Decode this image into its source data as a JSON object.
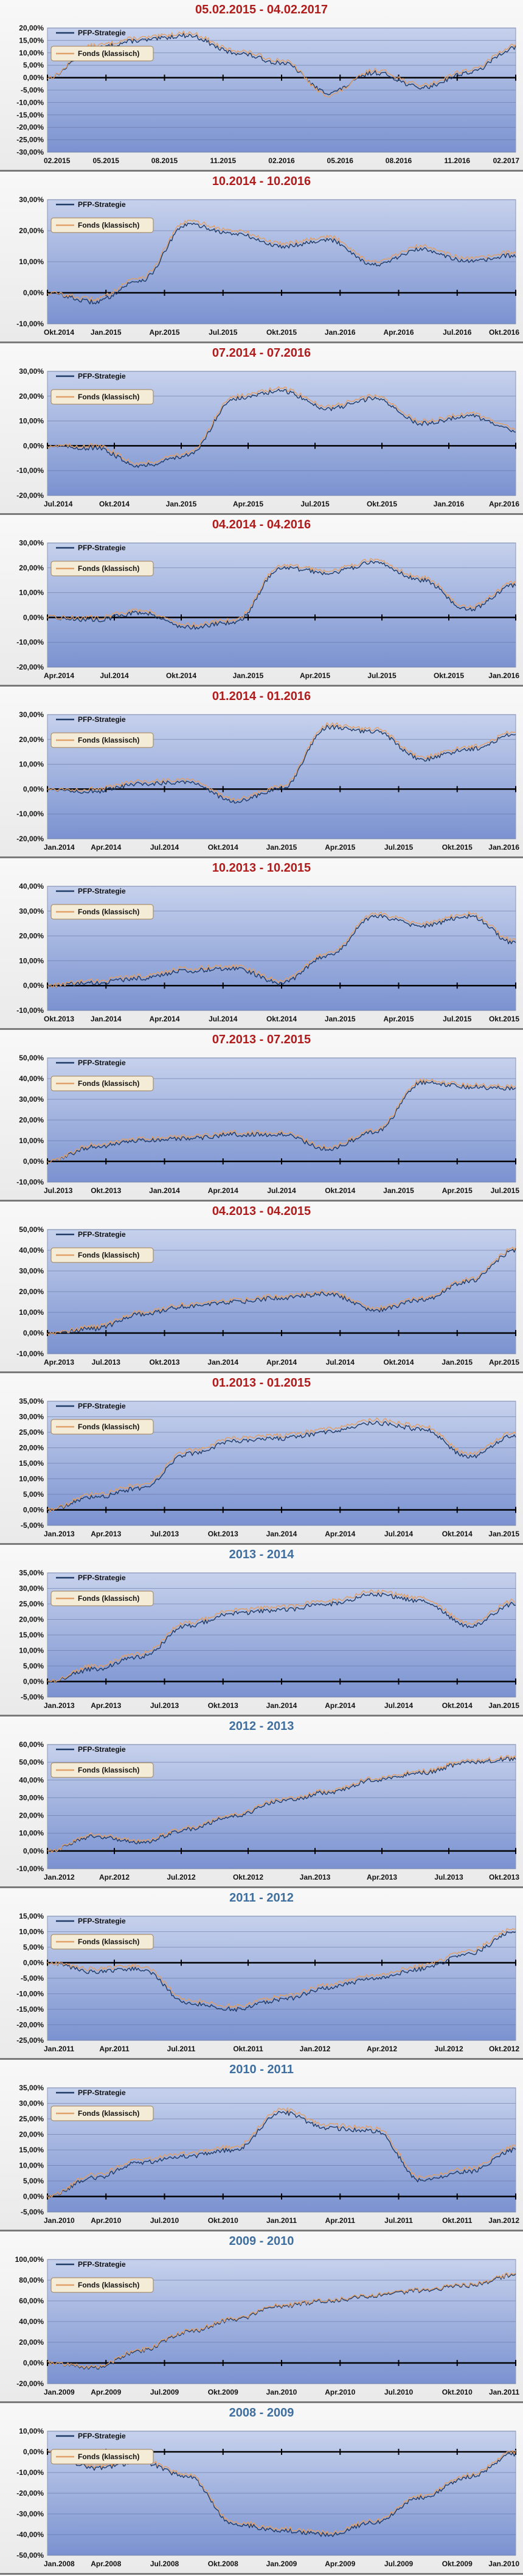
{
  "legend": {
    "series1": "PFP-Strategie",
    "series2": "Fonds (klassisch)"
  },
  "colors": {
    "strategy": "#1f3a66",
    "fund": "#e0a06a",
    "title_red": "#b01c1c",
    "title_blue": "#3f6f9f",
    "plot_top": "#c6d1ec",
    "plot_bottom": "#7a92d0",
    "grid": "#5d6f9c"
  },
  "chart_data": [
    {
      "type": "line",
      "title": "05.02.2015 - 04.02.2017",
      "title_color": "red",
      "ylim": [
        -30,
        20
      ],
      "yticks": [
        20,
        15,
        10,
        5,
        0,
        -5,
        -10,
        -15,
        -20,
        -25,
        -30
      ],
      "xticks": [
        "02.2015",
        "05.2015",
        "08.2015",
        "11.2015",
        "02.2016",
        "05.2016",
        "08.2016",
        "11.2016",
        "02.2017"
      ],
      "series": [
        {
          "name": "PFP-Strategie",
          "values": [
            0,
            12,
            15,
            17,
            10,
            6,
            -6,
            2,
            -4,
            2,
            12
          ]
        },
        {
          "name": "Fonds (klassisch)",
          "values": [
            0,
            13,
            16,
            18,
            11,
            7,
            -7,
            3,
            -3,
            3,
            13
          ]
        }
      ]
    },
    {
      "type": "line",
      "title": "10.2014 - 10.2016",
      "title_color": "red",
      "ylim": [
        -10,
        30
      ],
      "yticks": [
        30,
        20,
        10,
        0,
        -10
      ],
      "xticks": [
        "Okt.2014",
        "Jan.2015",
        "Apr.2015",
        "Jul.2015",
        "Okt.2015",
        "Jan.2016",
        "Apr.2016",
        "Jul.2016",
        "Okt.2016"
      ],
      "series": [
        {
          "name": "PFP-Strategie",
          "values": [
            0,
            -3,
            4,
            22,
            19,
            15,
            17,
            9,
            14,
            10,
            12
          ]
        },
        {
          "name": "Fonds (klassisch)",
          "values": [
            0,
            -2,
            5,
            23,
            20,
            16,
            18,
            10,
            15,
            11,
            13
          ]
        }
      ]
    },
    {
      "type": "line",
      "title": "07.2014 - 07.2016",
      "title_color": "red",
      "ylim": [
        -20,
        30
      ],
      "yticks": [
        30,
        20,
        10,
        0,
        -10,
        -20
      ],
      "xticks": [
        "Jul.2014",
        "Okt.2014",
        "Jan.2015",
        "Apr.2015",
        "Jul.2015",
        "Okt.2015",
        "Jan.2016",
        "Apr.2016"
      ],
      "series": [
        {
          "name": "PFP-Strategie",
          "values": [
            0,
            -1,
            -8,
            -4,
            19,
            22,
            15,
            19,
            9,
            12,
            6
          ]
        },
        {
          "name": "Fonds (klassisch)",
          "values": [
            0,
            0,
            -7,
            -3,
            20,
            23,
            16,
            20,
            10,
            13,
            7
          ]
        }
      ]
    },
    {
      "type": "line",
      "title": "04.2014 - 04.2016",
      "title_color": "red",
      "ylim": [
        -20,
        30
      ],
      "yticks": [
        30,
        20,
        10,
        0,
        -10,
        -20
      ],
      "xticks": [
        "Apr.2014",
        "Jul.2014",
        "Okt.2014",
        "Jan.2015",
        "Apr.2015",
        "Jul.2015",
        "Okt.2015",
        "Jan.2016"
      ],
      "series": [
        {
          "name": "PFP-Strategie",
          "values": [
            0,
            -1,
            2,
            -4,
            -2,
            20,
            18,
            22,
            15,
            3,
            13
          ]
        },
        {
          "name": "Fonds (klassisch)",
          "values": [
            0,
            0,
            3,
            -3,
            -1,
            21,
            19,
            23,
            16,
            4,
            14
          ]
        }
      ]
    },
    {
      "type": "line",
      "title": "01.2014 - 01.2016",
      "title_color": "red",
      "ylim": [
        -20,
        30
      ],
      "yticks": [
        30,
        20,
        10,
        0,
        -10,
        -20
      ],
      "xticks": [
        "Jan.2014",
        "Apr.2014",
        "Jul.2014",
        "Okt.2014",
        "Jan.2015",
        "Apr.2015",
        "Jul.2015",
        "Okt.2015",
        "Jan.2016"
      ],
      "series": [
        {
          "name": "PFP-Strategie",
          "values": [
            0,
            -1,
            2,
            3,
            -5,
            0,
            25,
            23,
            12,
            16,
            22
          ]
        },
        {
          "name": "Fonds (klassisch)",
          "values": [
            0,
            0,
            3,
            4,
            -4,
            1,
            26,
            24,
            13,
            17,
            23
          ]
        }
      ]
    },
    {
      "type": "line",
      "title": "10.2013 - 10.2015",
      "title_color": "red",
      "ylim": [
        -10,
        40
      ],
      "yticks": [
        40,
        30,
        20,
        10,
        0,
        -10
      ],
      "xticks": [
        "Okt.2013",
        "Jan.2014",
        "Apr.2014",
        "Jul.2014",
        "Okt.2014",
        "Jan.2015",
        "Apr.2015",
        "Jul.2015",
        "Okt.2015"
      ],
      "series": [
        {
          "name": "PFP-Strategie",
          "values": [
            0,
            1,
            3,
            6,
            7,
            1,
            12,
            28,
            24,
            28,
            17
          ]
        },
        {
          "name": "Fonds (klassisch)",
          "values": [
            0,
            2,
            4,
            7,
            8,
            2,
            13,
            29,
            25,
            29,
            18
          ]
        }
      ]
    },
    {
      "type": "line",
      "title": "07.2013 - 07.2015",
      "title_color": "red",
      "ylim": [
        -10,
        50
      ],
      "yticks": [
        50,
        40,
        30,
        20,
        10,
        0,
        -10
      ],
      "xticks": [
        "Jul.2013",
        "Okt.2013",
        "Jan.2014",
        "Apr.2014",
        "Jul.2014",
        "Okt.2014",
        "Jan.2015",
        "Apr.2015",
        "Jul.2015"
      ],
      "series": [
        {
          "name": "PFP-Strategie",
          "values": [
            0,
            7,
            10,
            11,
            13,
            13,
            6,
            14,
            38,
            36,
            35
          ]
        },
        {
          "name": "Fonds (klassisch)",
          "values": [
            0,
            8,
            11,
            12,
            14,
            14,
            7,
            15,
            39,
            37,
            36
          ]
        }
      ]
    },
    {
      "type": "line",
      "title": "04.2013 - 04.2015",
      "title_color": "red",
      "ylim": [
        -10,
        50
      ],
      "yticks": [
        50,
        40,
        30,
        20,
        10,
        0,
        -10
      ],
      "xticks": [
        "Apr.2013",
        "Jul.2013",
        "Okt.2013",
        "Jan.2014",
        "Apr.2014",
        "Jul.2014",
        "Okt.2014",
        "Jan.2015",
        "Apr.2015"
      ],
      "series": [
        {
          "name": "PFP-Strategie",
          "values": [
            0,
            2,
            9,
            13,
            15,
            17,
            19,
            11,
            16,
            25,
            40
          ]
        },
        {
          "name": "Fonds (klassisch)",
          "values": [
            0,
            3,
            10,
            14,
            16,
            18,
            20,
            12,
            17,
            26,
            41
          ]
        }
      ]
    },
    {
      "type": "line",
      "title": "01.2013 - 01.2015",
      "title_color": "red",
      "ylim": [
        -5,
        35
      ],
      "yticks": [
        35,
        30,
        25,
        20,
        15,
        10,
        5,
        0,
        -5
      ],
      "xticks": [
        "Jan.2013",
        "Apr.2013",
        "Jul.2013",
        "Okt.2013",
        "Jan.2014",
        "Apr.2014",
        "Jul.2014",
        "Okt.2014",
        "Jan.2015"
      ],
      "series": [
        {
          "name": "PFP-Strategie",
          "values": [
            0,
            4,
            7,
            18,
            22,
            23,
            25,
            28,
            26,
            17,
            24
          ]
        },
        {
          "name": "Fonds (klassisch)",
          "values": [
            0,
            5,
            8,
            19,
            23,
            24,
            26,
            29,
            27,
            18,
            25
          ]
        }
      ]
    },
    {
      "type": "line",
      "title": "2013 - 2014",
      "title_color": "blue",
      "ylim": [
        -5,
        35
      ],
      "yticks": [
        35,
        30,
        25,
        20,
        15,
        10,
        5,
        0,
        -5
      ],
      "xticks": [
        "Jan.2013",
        "Apr.2013",
        "Jul.2013",
        "Okt.2013",
        "Jan.2014",
        "Apr.2014",
        "Jul.2014",
        "Okt.2014",
        "Jan.2015"
      ],
      "series": [
        {
          "name": "PFP-Strategie",
          "values": [
            0,
            4,
            8,
            18,
            22,
            23,
            25,
            28,
            26,
            18,
            25
          ]
        },
        {
          "name": "Fonds (klassisch)",
          "values": [
            0,
            5,
            9,
            19,
            23,
            24,
            26,
            29,
            27,
            19,
            26
          ]
        }
      ]
    },
    {
      "type": "line",
      "title": "2012 - 2013",
      "title_color": "blue",
      "ylim": [
        -10,
        60
      ],
      "yticks": [
        60,
        50,
        40,
        30,
        20,
        10,
        0,
        -10
      ],
      "xticks": [
        "Jan.2012",
        "Apr.2012",
        "Jul.2012",
        "Okt.2012",
        "Jan.2013",
        "Apr.2013",
        "Jul.2013",
        "Okt.2013"
      ],
      "series": [
        {
          "name": "PFP-Strategie",
          "values": [
            0,
            8,
            5,
            12,
            20,
            28,
            33,
            40,
            44,
            50,
            52
          ]
        },
        {
          "name": "Fonds (klassisch)",
          "values": [
            0,
            9,
            6,
            13,
            21,
            29,
            34,
            41,
            45,
            51,
            53
          ]
        }
      ]
    },
    {
      "type": "line",
      "title": "2011 - 2012",
      "title_color": "blue",
      "ylim": [
        -25,
        15
      ],
      "yticks": [
        15,
        10,
        5,
        0,
        -5,
        -10,
        -15,
        -20,
        -25
      ],
      "xticks": [
        "Jan.2011",
        "Apr.2011",
        "Jul.2011",
        "Okt.2011",
        "Jan.2012",
        "Apr.2012",
        "Jul.2012",
        "Okt.2012"
      ],
      "series": [
        {
          "name": "PFP-Strategie",
          "values": [
            0,
            -3,
            -2,
            -13,
            -15,
            -12,
            -8,
            -5,
            -2,
            3,
            10
          ]
        },
        {
          "name": "Fonds (klassisch)",
          "values": [
            0,
            -2,
            -1,
            -12,
            -14,
            -11,
            -7,
            -4,
            -1,
            4,
            11
          ]
        }
      ]
    },
    {
      "type": "line",
      "title": "2010 - 2011",
      "title_color": "blue",
      "ylim": [
        -5,
        35
      ],
      "yticks": [
        35,
        30,
        25,
        20,
        15,
        10,
        5,
        0,
        -5
      ],
      "xticks": [
        "Jan.2010",
        "Apr.2010",
        "Jul.2010",
        "Okt.2010",
        "Jan.2011",
        "Apr.2011",
        "Jul.2011",
        "Okt.2011",
        "Jan.2012"
      ],
      "series": [
        {
          "name": "PFP-Strategie",
          "values": [
            0,
            6,
            11,
            13,
            15,
            27,
            22,
            21,
            5,
            8,
            15
          ]
        },
        {
          "name": "Fonds (klassisch)",
          "values": [
            0,
            7,
            12,
            14,
            16,
            28,
            23,
            22,
            6,
            9,
            16
          ]
        }
      ]
    },
    {
      "type": "line",
      "title": "2009 - 2010",
      "title_color": "blue",
      "ylim": [
        -20,
        100
      ],
      "yticks": [
        100,
        80,
        60,
        40,
        20,
        0,
        -20
      ],
      "xticks": [
        "Jan.2009",
        "Apr.2009",
        "Jul.2009",
        "Okt.2009",
        "Jan.2010",
        "Apr.2010",
        "Jul.2010",
        "Okt.2010",
        "Jan.2011"
      ],
      "series": [
        {
          "name": "PFP-Strategie",
          "values": [
            0,
            -5,
            12,
            30,
            42,
            55,
            60,
            65,
            70,
            75,
            85
          ]
        },
        {
          "name": "Fonds (klassisch)",
          "values": [
            0,
            -4,
            13,
            31,
            43,
            56,
            61,
            66,
            71,
            76,
            86
          ]
        }
      ]
    },
    {
      "type": "line",
      "title": "2008 - 2009",
      "title_color": "blue",
      "ylim": [
        -50,
        10
      ],
      "yticks": [
        10,
        0,
        -10,
        -20,
        -30,
        -40,
        -50
      ],
      "xticks": [
        "Jan.2008",
        "Apr.2008",
        "Jul.2008",
        "Okt.2008",
        "Jan.2009",
        "Apr.2009",
        "Jul.2009",
        "Okt.2009",
        "Jan.2010"
      ],
      "series": [
        {
          "name": "PFP-Strategie",
          "values": [
            0,
            -8,
            -5,
            -12,
            -35,
            -38,
            -40,
            -34,
            -22,
            -12,
            -1
          ]
        },
        {
          "name": "Fonds (klassisch)",
          "values": [
            0,
            -7,
            -4,
            -11,
            -34,
            -37,
            -39,
            -33,
            -21,
            -11,
            0
          ]
        }
      ]
    }
  ]
}
